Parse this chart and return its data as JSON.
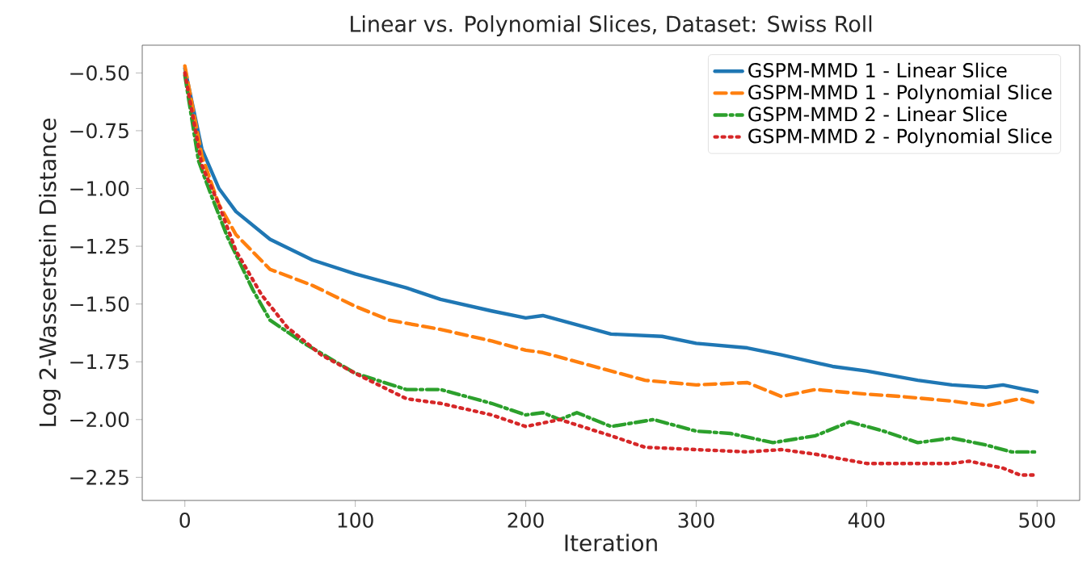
{
  "chart_data": {
    "type": "line",
    "title": "Linear vs. Polynomial Slices, Dataset: Swiss Roll",
    "xlabel": "Iteration",
    "ylabel": "Log 2-Wasserstein Distance",
    "xlim": [
      -25,
      525
    ],
    "ylim": [
      -2.35,
      -0.38
    ],
    "xticks": [
      0,
      100,
      200,
      300,
      400,
      500
    ],
    "yticks": [
      {
        "value": -2.25,
        "label": "−2.25"
      },
      {
        "value": -2.0,
        "label": "−2.00"
      },
      {
        "value": -1.75,
        "label": "−1.75"
      },
      {
        "value": -1.5,
        "label": "−1.50"
      },
      {
        "value": -1.25,
        "label": "−1.25"
      },
      {
        "value": -1.0,
        "label": "−1.00"
      },
      {
        "value": -0.75,
        "label": "−0.75"
      },
      {
        "value": -0.5,
        "label": "−0.50"
      }
    ],
    "legend": "top right",
    "grid": false,
    "series": [
      {
        "name": "GSPM-MMD 1 - Linear Slice",
        "color": "#1f77b4",
        "line_style": "solid",
        "x": [
          0,
          10,
          20,
          30,
          50,
          75,
          100,
          130,
          150,
          180,
          200,
          210,
          250,
          280,
          300,
          330,
          350,
          380,
          400,
          430,
          450,
          470,
          480,
          500
        ],
        "values": [
          -0.48,
          -0.83,
          -1.0,
          -1.1,
          -1.22,
          -1.31,
          -1.37,
          -1.43,
          -1.48,
          -1.53,
          -1.56,
          -1.55,
          -1.63,
          -1.64,
          -1.67,
          -1.69,
          -1.72,
          -1.77,
          -1.79,
          -1.83,
          -1.85,
          -1.86,
          -1.85,
          -1.88
        ]
      },
      {
        "name": "GSPM-MMD 1 - Polynomial Slice",
        "color": "#ff7f0e",
        "line_style": "dashed",
        "x": [
          0,
          10,
          20,
          30,
          50,
          75,
          100,
          120,
          150,
          180,
          200,
          210,
          250,
          270,
          300,
          330,
          350,
          370,
          400,
          420,
          450,
          470,
          490,
          500
        ],
        "values": [
          -0.47,
          -0.86,
          -1.07,
          -1.2,
          -1.35,
          -1.42,
          -1.51,
          -1.57,
          -1.61,
          -1.66,
          -1.7,
          -1.71,
          -1.79,
          -1.83,
          -1.85,
          -1.84,
          -1.9,
          -1.87,
          -1.89,
          -1.9,
          -1.92,
          -1.94,
          -1.91,
          -1.93
        ]
      },
      {
        "name": "GSPM-MMD 2 - Linear Slice",
        "color": "#2ca02c",
        "line_style": "dashdot",
        "x": [
          0,
          8,
          15,
          25,
          40,
          50,
          70,
          100,
          130,
          150,
          180,
          200,
          210,
          220,
          230,
          250,
          275,
          300,
          320,
          345,
          370,
          390,
          410,
          430,
          450,
          470,
          485,
          500
        ],
        "values": [
          -0.51,
          -0.88,
          -1.02,
          -1.21,
          -1.44,
          -1.57,
          -1.67,
          -1.8,
          -1.87,
          -1.87,
          -1.93,
          -1.98,
          -1.97,
          -2.0,
          -1.97,
          -2.03,
          -2.0,
          -2.05,
          -2.06,
          -2.1,
          -2.07,
          -2.01,
          -2.05,
          -2.1,
          -2.08,
          -2.11,
          -2.14,
          -2.14
        ]
      },
      {
        "name": "GSPM-MMD 2 - Polynomial Slice",
        "color": "#d62728",
        "line_style": "dotted",
        "x": [
          0,
          10,
          20,
          30,
          45,
          60,
          80,
          100,
          130,
          150,
          180,
          200,
          220,
          250,
          270,
          300,
          330,
          350,
          370,
          400,
          430,
          450,
          460,
          480,
          490,
          500
        ],
        "values": [
          -0.5,
          -0.9,
          -1.07,
          -1.27,
          -1.46,
          -1.6,
          -1.72,
          -1.8,
          -1.91,
          -1.93,
          -1.98,
          -2.03,
          -2.0,
          -2.07,
          -2.12,
          -2.13,
          -2.14,
          -2.13,
          -2.15,
          -2.19,
          -2.19,
          -2.19,
          -2.18,
          -2.21,
          -2.24,
          -2.24
        ]
      }
    ]
  }
}
